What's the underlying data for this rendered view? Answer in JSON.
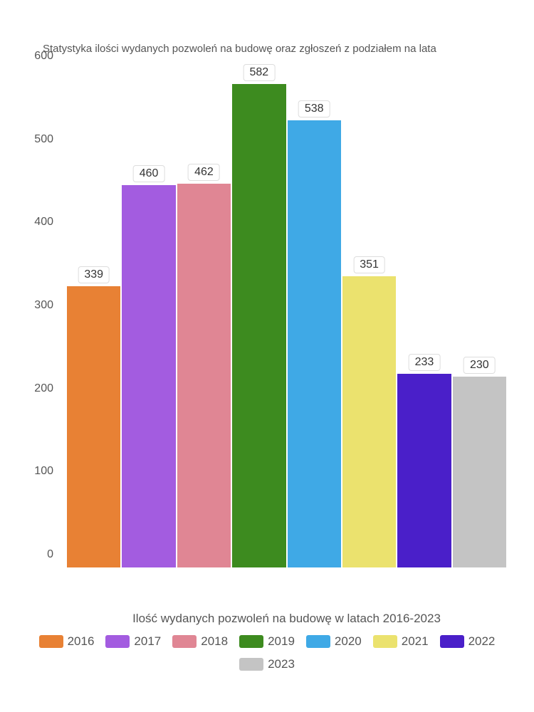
{
  "chart": {
    "type": "bar",
    "title": "Statystyka ilości wydanych pozwoleń na budowę oraz zgłoszeń z podziałem na lata",
    "x_axis_label": "Ilość wydanych pozwoleń na budowę w latach 2016-2023",
    "title_fontsize": 15,
    "label_fontsize": 17,
    "tick_fontsize": 16,
    "value_label_fontsize": 16,
    "background_color": "#ffffff",
    "text_color": "#555555",
    "ylim": [
      0,
      600
    ],
    "ytick_step": 100,
    "yticks": [
      {
        "value": 0,
        "label": "0"
      },
      {
        "value": 100,
        "label": "100"
      },
      {
        "value": 200,
        "label": "200"
      },
      {
        "value": 300,
        "label": "300"
      },
      {
        "value": 400,
        "label": "400"
      },
      {
        "value": 500,
        "label": "500"
      },
      {
        "value": 600,
        "label": "600"
      }
    ],
    "categories": [
      "2016",
      "2017",
      "2018",
      "2019",
      "2020",
      "2021",
      "2022",
      "2023"
    ],
    "values": [
      339,
      460,
      462,
      582,
      538,
      351,
      233,
      230
    ],
    "bar_colors": [
      "#e88134",
      "#a35ce0",
      "#e08694",
      "#3d8b1f",
      "#3fa9e6",
      "#ebe26e",
      "#4a1fc9",
      "#c4c4c4"
    ],
    "bar_width": 0.92,
    "value_label_bg": "#ffffff",
    "value_label_border": "#dddddd"
  }
}
